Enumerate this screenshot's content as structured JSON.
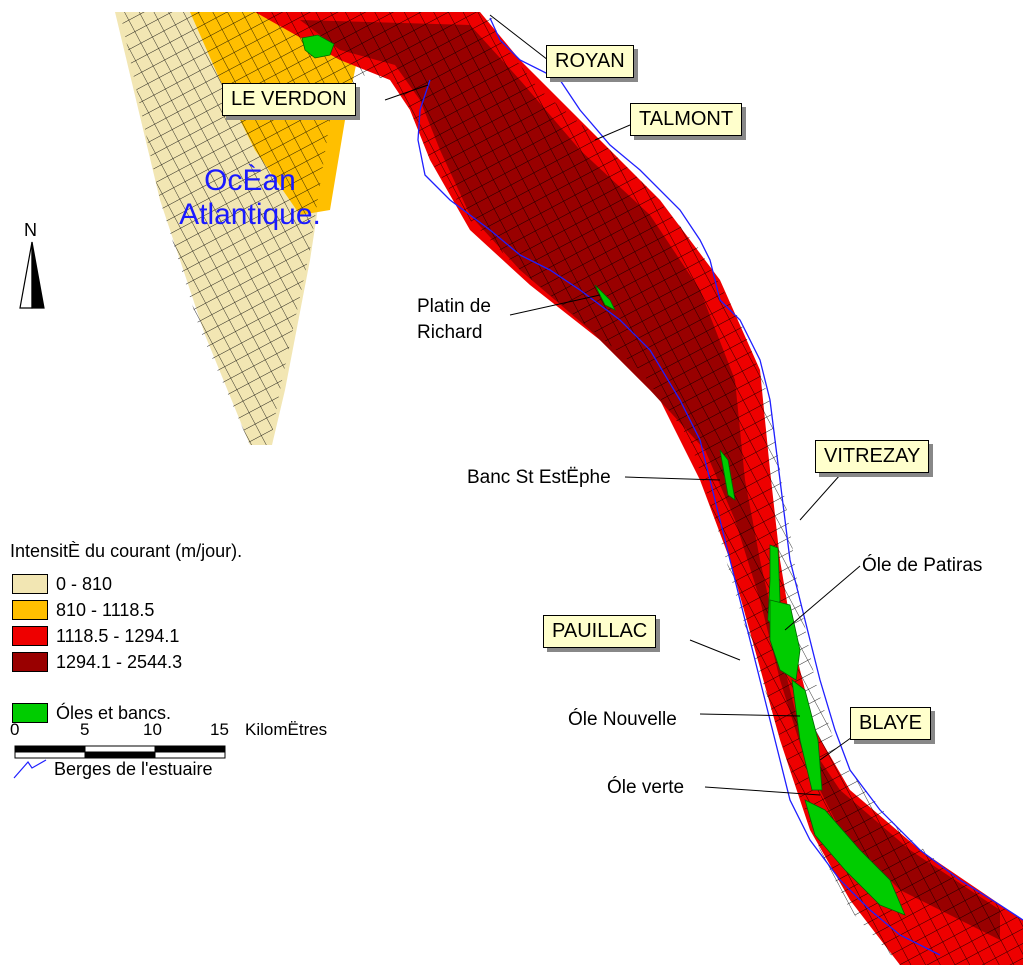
{
  "ocean_label": [
    "OcÈan",
    "Atlantique."
  ],
  "places": {
    "royan": "ROYAN",
    "le_verdon": "LE VERDON",
    "talmont": "TALMONT",
    "vitrezay": "VITREZAY",
    "pauillac": "PAUILLAC",
    "blaye": "BLAYE"
  },
  "features": {
    "platin": [
      "Platin de",
      "Richard"
    ],
    "banc": "Banc St EstËphe",
    "patiras": "Óle de Patiras",
    "nouvelle": "Óle Nouvelle",
    "verte": "Óle verte"
  },
  "north_label": "N",
  "legend": {
    "title": "IntensitÈ du courant (m/jour).",
    "classes": [
      {
        "label": "0 - 810",
        "color": "#f2e6b3"
      },
      {
        "label": "810 - 1118.5",
        "color": "#ffbf00"
      },
      {
        "label": "1118.5 - 1294.1",
        "color": "#ee0000"
      },
      {
        "label": "1294.1 - 2544.3",
        "color": "#990000"
      }
    ],
    "islands": {
      "label": "Óles et bancs.",
      "color": "#00cc00"
    },
    "banks": {
      "label": "Berges de l'estuaire",
      "color": "#1f1fff"
    }
  },
  "scale": {
    "ticks": [
      "0",
      "5",
      "10",
      "15"
    ],
    "unit": "KilomËtres"
  }
}
